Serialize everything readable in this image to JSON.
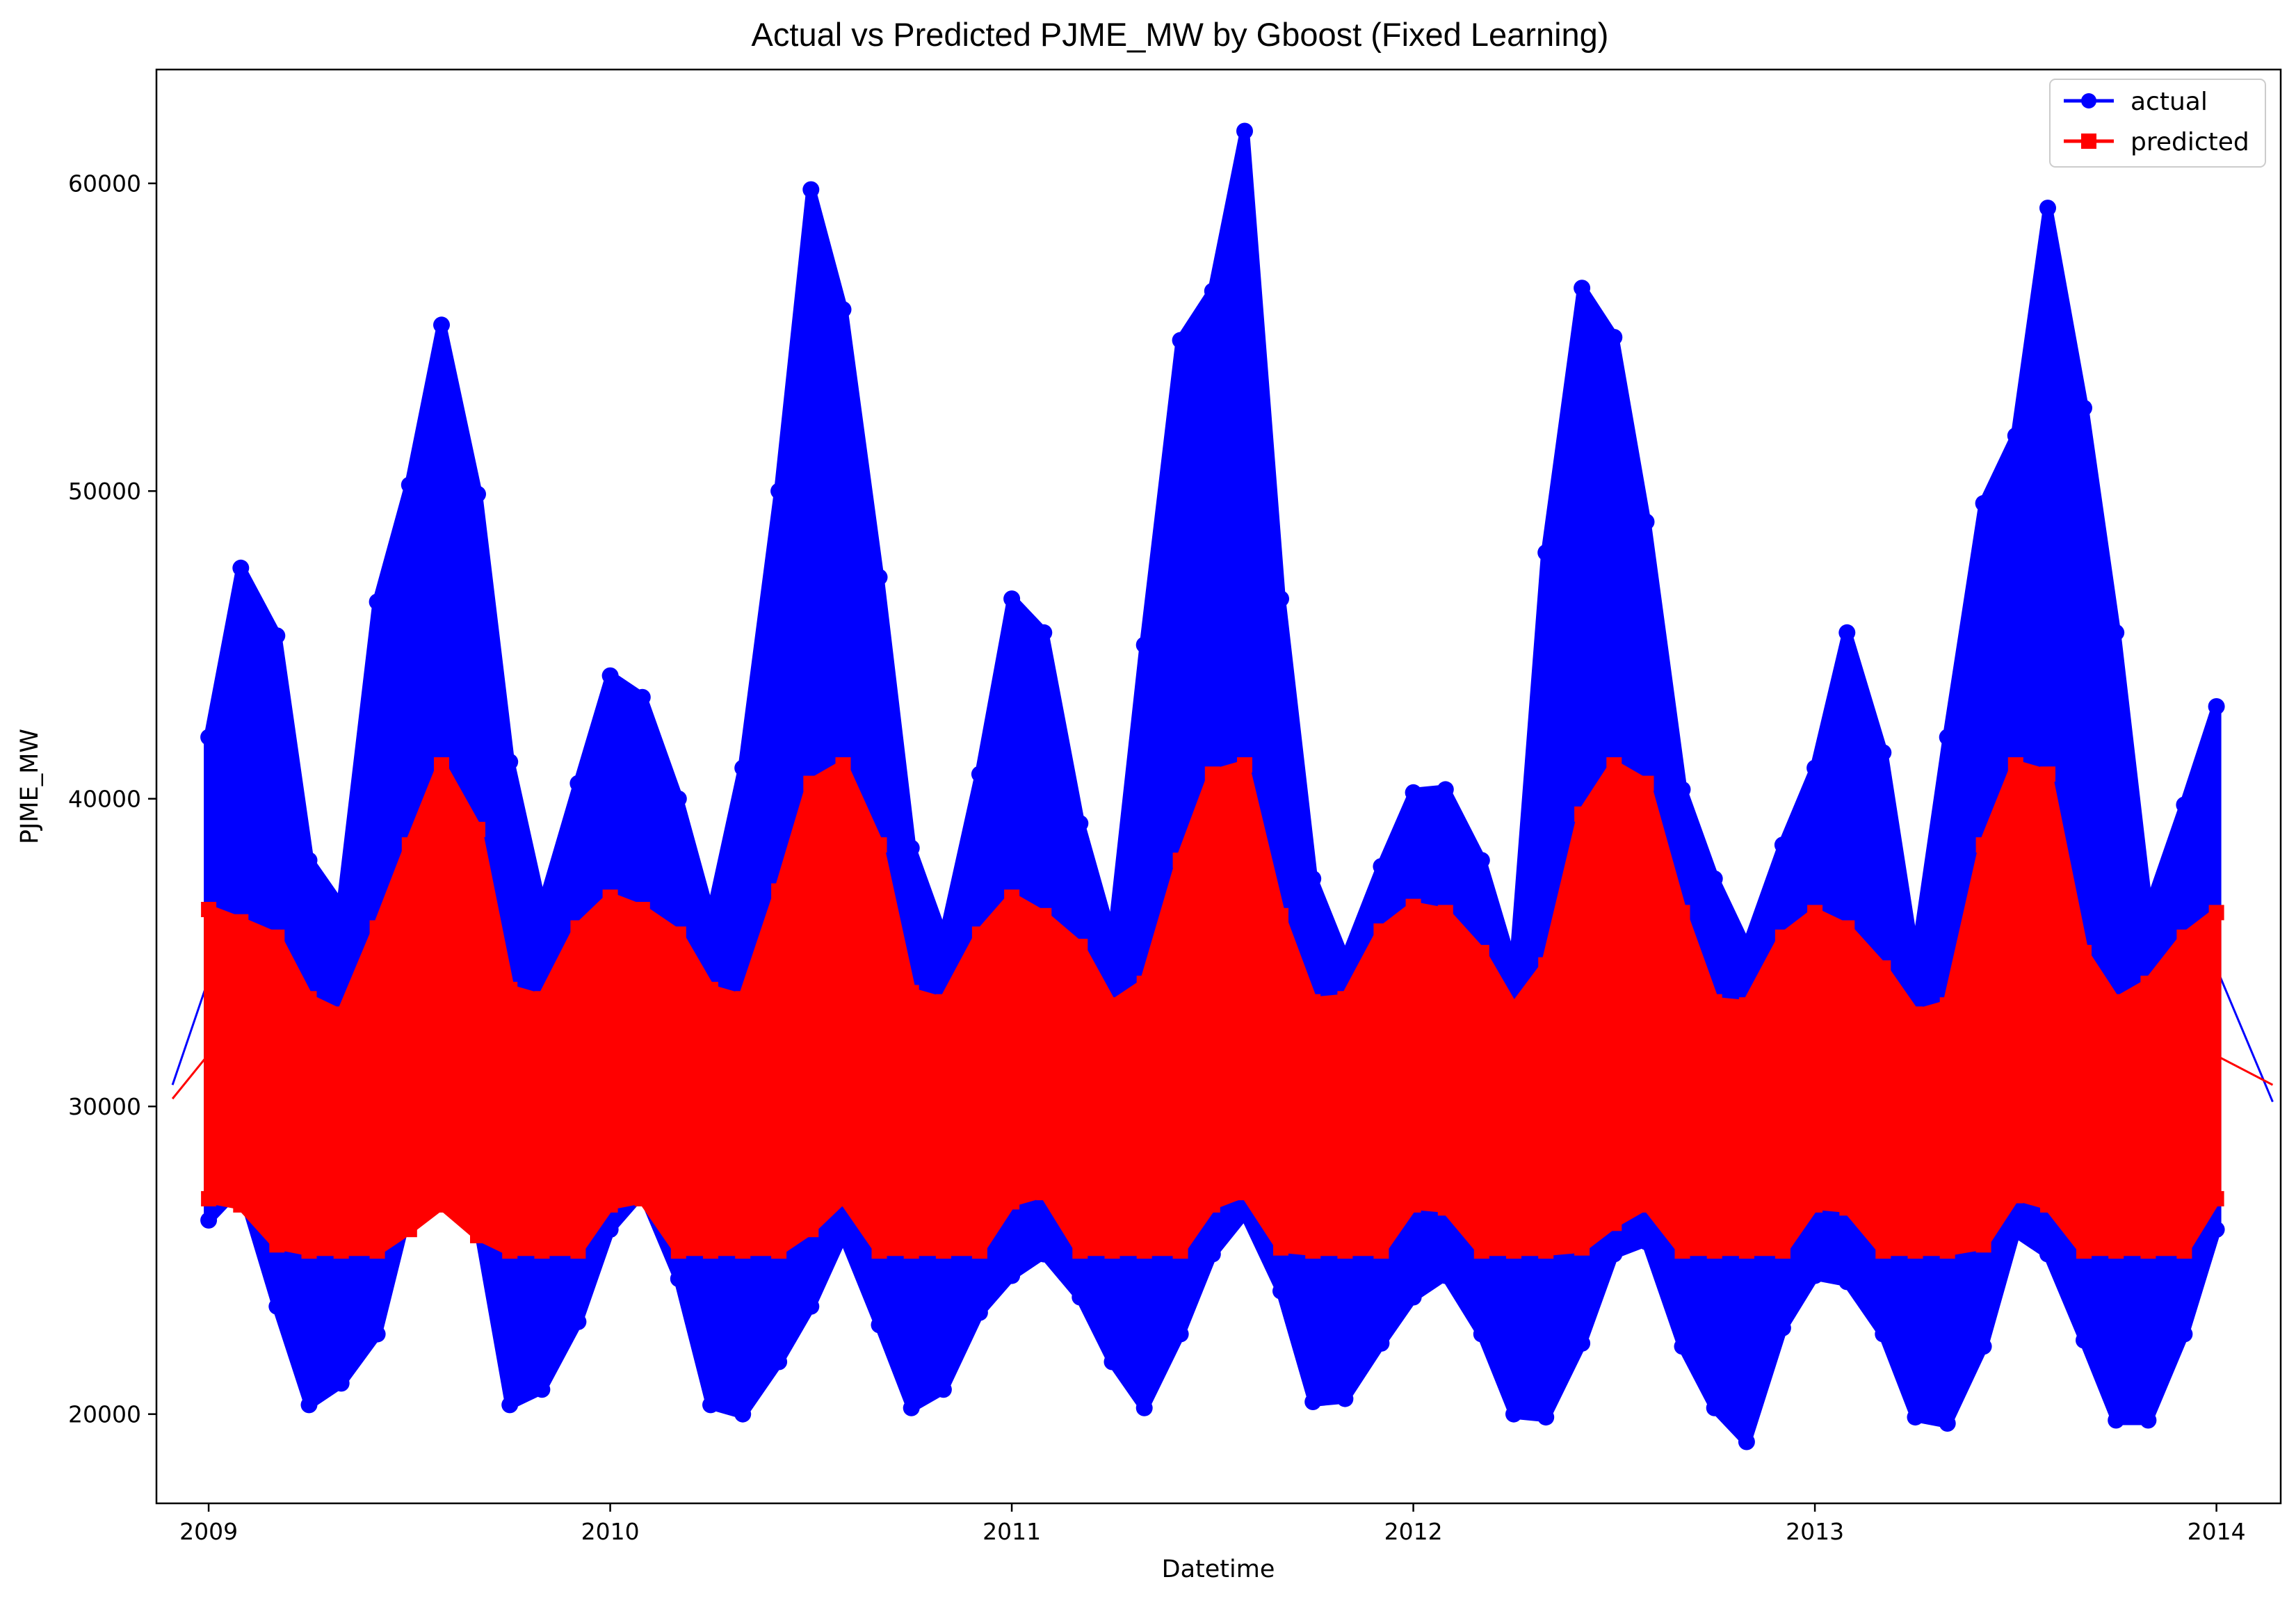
{
  "chart_data": {
    "type": "line",
    "title": "Actual vs Predicted PJME_MW by Gboost (Fixed Learning)",
    "xlabel": "Datetime",
    "ylabel": "PJME_MW",
    "xlim": [
      2008.87,
      2014.16
    ],
    "ylim": [
      17100,
      63700
    ],
    "x_ticks": [
      2009,
      2010,
      2011,
      2012,
      2013,
      2014
    ],
    "x_tick_labels": [
      "2009",
      "2010",
      "2011",
      "2012",
      "2013",
      "2014"
    ],
    "y_ticks": [
      20000,
      30000,
      40000,
      50000,
      60000
    ],
    "y_tick_labels": [
      "20000",
      "30000",
      "40000",
      "50000",
      "60000"
    ],
    "grid": false,
    "legend_position": "top-right",
    "series": [
      {
        "name": "actual",
        "color": "#0000ff",
        "marker": "circle",
        "x": [
          2009.0,
          2009.08,
          2009.17,
          2009.25,
          2009.33,
          2009.42,
          2009.5,
          2009.58,
          2009.67,
          2009.75,
          2009.83,
          2009.92,
          2010.0,
          2010.08,
          2010.17,
          2010.25,
          2010.33,
          2010.42,
          2010.5,
          2010.58,
          2010.67,
          2010.75,
          2010.83,
          2010.92,
          2011.0,
          2011.08,
          2011.17,
          2011.25,
          2011.33,
          2011.42,
          2011.5,
          2011.58,
          2011.67,
          2011.75,
          2011.83,
          2011.92,
          2012.0,
          2012.08,
          2012.17,
          2012.25,
          2012.33,
          2012.42,
          2012.5,
          2012.58,
          2012.67,
          2012.75,
          2012.83,
          2012.92,
          2013.0,
          2013.08,
          2013.17,
          2013.25,
          2013.33,
          2013.42,
          2013.5,
          2013.58,
          2013.67,
          2013.75,
          2013.83,
          2013.92,
          2014.0
        ],
        "upper": [
          42000,
          47500,
          45300,
          38000,
          36500,
          46400,
          50200,
          55400,
          49900,
          41200,
          36500,
          40500,
          44000,
          43300,
          40000,
          36200,
          41000,
          50000,
          59800,
          55900,
          47200,
          38400,
          35500,
          40800,
          46500,
          45400,
          39200,
          35500,
          45000,
          54900,
          56500,
          61700,
          46500,
          37400,
          34800,
          37800,
          40200,
          40300,
          38000,
          34500,
          48000,
          56600,
          55000,
          49000,
          40300,
          37400,
          35200,
          38500,
          41000,
          45400,
          41500,
          34800,
          42000,
          49600,
          51800,
          59200,
          52700,
          45400,
          36400,
          39800,
          43000
        ],
        "lower": [
          26300,
          27400,
          23500,
          20300,
          21000,
          22600,
          26800,
          27700,
          26200,
          20300,
          20800,
          23000,
          26000,
          27200,
          24400,
          20300,
          20000,
          21700,
          23500,
          25800,
          22900,
          20200,
          20800,
          23300,
          24500,
          25200,
          23800,
          21700,
          20200,
          22600,
          25200,
          26500,
          24000,
          20400,
          20500,
          22300,
          23800,
          24500,
          22600,
          20000,
          19900,
          22300,
          25200,
          25600,
          22200,
          20200,
          19100,
          22800,
          24500,
          24300,
          22600,
          19900,
          19700,
          22200,
          25900,
          25200,
          22400,
          19800,
          19800,
          22600,
          26000
        ]
      },
      {
        "name": "predicted",
        "color": "#ff0000",
        "marker": "square",
        "x": [
          2009.0,
          2009.08,
          2009.17,
          2009.25,
          2009.33,
          2009.42,
          2009.5,
          2009.58,
          2009.67,
          2009.75,
          2009.83,
          2009.92,
          2010.0,
          2010.08,
          2010.17,
          2010.25,
          2010.33,
          2010.42,
          2010.5,
          2010.58,
          2010.67,
          2010.75,
          2010.83,
          2010.92,
          2011.0,
          2011.08,
          2011.17,
          2011.25,
          2011.33,
          2011.42,
          2011.5,
          2011.58,
          2011.67,
          2011.75,
          2011.83,
          2011.92,
          2012.0,
          2012.08,
          2012.17,
          2012.25,
          2012.33,
          2012.42,
          2012.5,
          2012.58,
          2012.67,
          2012.75,
          2012.83,
          2012.92,
          2013.0,
          2013.08,
          2013.17,
          2013.25,
          2013.33,
          2013.42,
          2013.5,
          2013.58,
          2013.67,
          2013.75,
          2013.83,
          2013.92,
          2014.0
        ],
        "upper": [
          36400,
          36000,
          35500,
          33500,
          33000,
          35800,
          38500,
          41100,
          39000,
          33800,
          33500,
          35800,
          36800,
          36400,
          35600,
          33800,
          33500,
          37000,
          40500,
          41100,
          38500,
          33700,
          33400,
          35600,
          36800,
          36200,
          35200,
          33300,
          34000,
          38000,
          40800,
          41100,
          36200,
          33400,
          33500,
          35700,
          36500,
          36300,
          35000,
          33200,
          34600,
          39500,
          41100,
          40500,
          36300,
          33400,
          33300,
          35500,
          36300,
          35800,
          34500,
          33000,
          33300,
          38500,
          41100,
          40800,
          35000,
          33400,
          34000,
          35500,
          36300
        ],
        "lower": [
          27000,
          26800,
          25500,
          25300,
          25300,
          25300,
          26000,
          26800,
          25800,
          25300,
          25300,
          25300,
          26800,
          27000,
          25300,
          25300,
          25300,
          25300,
          26000,
          27000,
          25300,
          25300,
          25300,
          25300,
          26900,
          27200,
          25300,
          25300,
          25300,
          25300,
          26800,
          27200,
          25400,
          25300,
          25300,
          25300,
          26800,
          26700,
          25300,
          25300,
          25300,
          25400,
          26200,
          26800,
          25300,
          25300,
          25300,
          25300,
          26800,
          26700,
          25300,
          25300,
          25300,
          25500,
          27100,
          26800,
          25300,
          25300,
          25300,
          25300,
          27000
        ],
        "tails": [
          [
            2008.91,
            30250
          ],
          [
            2014.14,
            30700
          ]
        ]
      }
    ],
    "actual_tails": [
      [
        2008.91,
        30700
      ],
      [
        2014.14,
        30150
      ]
    ]
  }
}
